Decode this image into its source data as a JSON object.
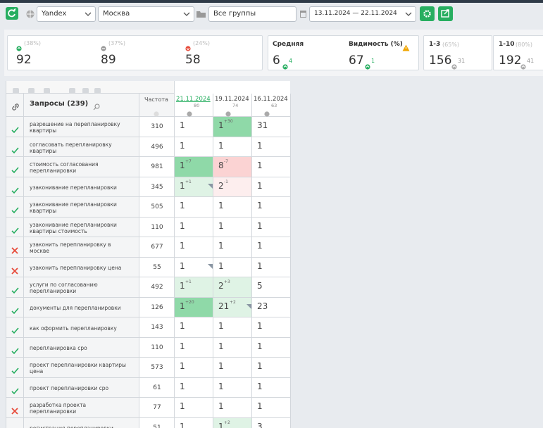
{
  "toolbar": {
    "engine": "Yandex",
    "region": "Москва",
    "group": "Все группы",
    "period": "13.11.2024 — 22.11.2024"
  },
  "stats": {
    "up": {
      "share": "(38%)",
      "value": 92
    },
    "same": {
      "share": "(37%)",
      "value": 89
    },
    "down": {
      "share": "(24%)",
      "value": 58
    },
    "average": {
      "label": "Средняя",
      "value": 6,
      "change": 4
    },
    "visibility": {
      "label": "Видимость (%)",
      "value": 67,
      "change": 1
    },
    "top3": {
      "label": "1-3",
      "share": "(65%)",
      "value": 156,
      "change": 31
    },
    "top10": {
      "label": "1-10",
      "share": "(80%)",
      "value": 192,
      "change": 41
    }
  },
  "table": {
    "query_header": "Запросы (239)",
    "freq_header": "Частота",
    "dates": [
      {
        "date": "21.11.2024",
        "count": 80
      },
      {
        "date": "19.11.2024",
        "count": 74
      },
      {
        "date": "16.11.2024",
        "count": 63
      }
    ],
    "rows": [
      {
        "status": "ok",
        "query": "разрешение на перепланировку квартиры",
        "freq": 310,
        "cells": [
          {
            "pos": 1
          },
          {
            "pos": 1,
            "delta": "+30",
            "tone": "up"
          },
          {
            "pos": 31
          }
        ]
      },
      {
        "status": "ok",
        "query": "согласовать перепланировку квартиры",
        "freq": 496,
        "cells": [
          {
            "pos": 1
          },
          {
            "pos": 1
          },
          {
            "pos": 1
          }
        ]
      },
      {
        "status": "ok",
        "query": "стоимость согласования перепланировки",
        "freq": 981,
        "cells": [
          {
            "pos": 1,
            "delta": "+7",
            "tone": "up"
          },
          {
            "pos": 8,
            "delta": "-7",
            "tone": "down"
          },
          {
            "pos": 1
          }
        ]
      },
      {
        "status": "ok",
        "query": "узаконивание перепланировки",
        "freq": 345,
        "cells": [
          {
            "pos": 1,
            "delta": "+1",
            "tone": "up-light",
            "corner": true
          },
          {
            "pos": 2,
            "delta": "-1",
            "tone": "down-light"
          },
          {
            "pos": 1
          }
        ]
      },
      {
        "status": "ok",
        "query": "узаконивание перепланировки квартиры",
        "freq": 505,
        "cells": [
          {
            "pos": 1
          },
          {
            "pos": 1
          },
          {
            "pos": 1
          }
        ]
      },
      {
        "status": "ok",
        "query": "узаконивание перепланировки квартиры стоимость",
        "freq": 110,
        "cells": [
          {
            "pos": 1
          },
          {
            "pos": 1
          },
          {
            "pos": 1
          }
        ]
      },
      {
        "status": "fail",
        "query": "узаконить перепланировку в москве",
        "freq": 677,
        "cells": [
          {
            "pos": 1
          },
          {
            "pos": 1
          },
          {
            "pos": 1
          }
        ]
      },
      {
        "status": "fail",
        "query": "узаконить перепланировку цена",
        "freq": 55,
        "cells": [
          {
            "pos": 1,
            "corner": true
          },
          {
            "pos": 1
          },
          {
            "pos": 1
          }
        ]
      },
      {
        "status": "ok",
        "query": "услуги по согласованию перепланировки",
        "freq": 492,
        "cells": [
          {
            "pos": 1,
            "delta": "+1",
            "tone": "up-light"
          },
          {
            "pos": 2,
            "delta": "+3",
            "tone": "up-light"
          },
          {
            "pos": 5
          }
        ]
      },
      {
        "status": "ok",
        "query": "документы для перепланировки",
        "freq": 126,
        "cells": [
          {
            "pos": 1,
            "delta": "+20",
            "tone": "up"
          },
          {
            "pos": 21,
            "delta": "+2",
            "tone": "up-light",
            "corner": true
          },
          {
            "pos": 23
          }
        ]
      },
      {
        "status": "ok",
        "query": "как оформить перепланировку",
        "freq": 143,
        "cells": [
          {
            "pos": 1
          },
          {
            "pos": 1
          },
          {
            "pos": 1
          }
        ]
      },
      {
        "status": "ok",
        "query": "перепланировка сро",
        "freq": 110,
        "cells": [
          {
            "pos": 1
          },
          {
            "pos": 1
          },
          {
            "pos": 1
          }
        ]
      },
      {
        "status": "ok",
        "query": "проект перепланировки квартиры цена",
        "freq": 573,
        "cells": [
          {
            "pos": 1
          },
          {
            "pos": 1
          },
          {
            "pos": 1
          }
        ]
      },
      {
        "status": "ok",
        "query": "проект перепланировки сро",
        "freq": 61,
        "cells": [
          {
            "pos": 1
          },
          {
            "pos": 1
          },
          {
            "pos": 1
          }
        ]
      },
      {
        "status": "fail",
        "query": "разработка проекта перепланировки",
        "freq": 77,
        "cells": [
          {
            "pos": 1
          },
          {
            "pos": 1
          },
          {
            "pos": 1
          }
        ]
      },
      {
        "status": "ok",
        "query": "регистрация перепланировки",
        "freq": 51,
        "cells": [
          {
            "pos": 1
          },
          {
            "pos": 1,
            "delta": "+2",
            "tone": "up-light"
          },
          {
            "pos": 3
          }
        ]
      }
    ]
  }
}
